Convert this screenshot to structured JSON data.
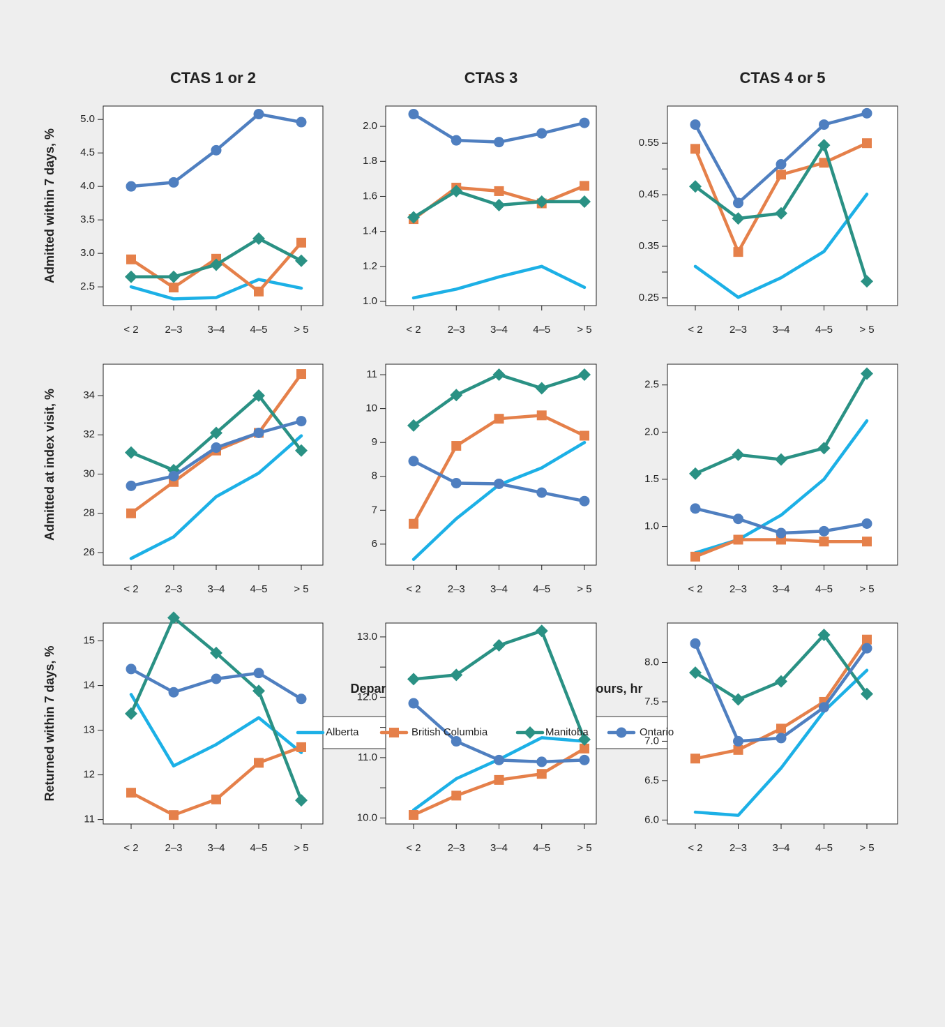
{
  "figure": {
    "column_titles": [
      "CTAS 1 or 2",
      "CTAS 3",
      "CTAS 4 or 5"
    ],
    "row_titles": [
      "Admitted within 7 days, %",
      "Admitted at index visit, %",
      "Returned within 7 days, %"
    ],
    "xlabel": "Departmental mean LOS in preceding 8 hours, hr",
    "legend": [
      {
        "name": "Alberta",
        "color": "#1cb0e6",
        "marker": "none"
      },
      {
        "name": "British Columbia",
        "color": "#e5804a",
        "marker": "square"
      },
      {
        "name": "Manitoba",
        "color": "#2a9184",
        "marker": "diamond"
      },
      {
        "name": "Ontario",
        "color": "#4f7fc0",
        "marker": "circle"
      }
    ]
  },
  "chart_data": [
    {
      "type": "line",
      "categories": [
        "< 2",
        "2–3",
        "3–4",
        "4–5",
        "> 5"
      ],
      "ylim": [
        2.22,
        5.2
      ],
      "yticks": [
        2.5,
        {
          "value": 3,
          "label": "3.0"
        },
        3.5,
        {
          "value": 4,
          "label": "4.0"
        },
        4.5,
        {
          "value": 5,
          "label": "5.0"
        }
      ],
      "series": [
        {
          "values": [
            2.5,
            2.32,
            2.34,
            2.61,
            2.48
          ]
        },
        {
          "values": [
            2.91,
            2.49,
            2.92,
            2.43,
            3.16
          ]
        },
        {
          "values": [
            2.65,
            2.65,
            2.83,
            3.22,
            2.89
          ]
        },
        {
          "values": [
            4.0,
            4.06,
            4.54,
            5.08,
            4.96
          ]
        }
      ]
    },
    {
      "type": "line",
      "categories": [
        "< 2",
        "2–3",
        "3–4",
        "4–5",
        "> 5"
      ],
      "ylim": [
        0.976,
        2.116
      ],
      "yticks": [
        {
          "value": 1,
          "label": "1.0"
        },
        1.2,
        1.4,
        1.6,
        1.8,
        {
          "value": 2,
          "label": "2.0"
        }
      ],
      "series": [
        {
          "values": [
            1.02,
            1.07,
            1.14,
            1.2,
            1.08
          ]
        },
        {
          "values": [
            1.47,
            1.65,
            1.63,
            1.56,
            1.66
          ]
        },
        {
          "values": [
            1.48,
            1.63,
            1.55,
            1.57,
            1.57
          ]
        },
        {
          "values": [
            2.07,
            1.92,
            1.91,
            1.96,
            2.02
          ]
        }
      ]
    },
    {
      "type": "line",
      "categories": [
        "< 2",
        "2–3",
        "3–4",
        "4–5",
        "> 5"
      ],
      "ylim": [
        0.235,
        0.622
      ],
      "yticks": [
        0.25,
        0.35,
        0.45,
        0.55
      ],
      "yminor": [
        0.3,
        0.4,
        0.5
      ],
      "series": [
        {
          "values": [
            0.311,
            0.251,
            0.289,
            0.34,
            0.451
          ]
        },
        {
          "values": [
            0.539,
            0.339,
            0.489,
            0.512,
            0.55
          ]
        },
        {
          "values": [
            0.466,
            0.404,
            0.414,
            0.546,
            0.282
          ]
        },
        {
          "values": [
            0.586,
            0.434,
            0.509,
            0.586,
            0.608
          ]
        }
      ]
    },
    {
      "type": "line",
      "categories": [
        "< 2",
        "2–3",
        "3–4",
        "4–5",
        "> 5"
      ],
      "ylim": [
        25.36,
        35.6
      ],
      "yticks": [
        26,
        28,
        30,
        32,
        34
      ],
      "series": [
        {
          "values": [
            25.7,
            26.8,
            28.85,
            30.05,
            31.95
          ]
        },
        {
          "values": [
            28.0,
            29.6,
            31.2,
            32.1,
            35.1
          ]
        },
        {
          "values": [
            31.1,
            30.2,
            32.1,
            34.0,
            31.2
          ]
        },
        {
          "values": [
            29.4,
            29.9,
            31.35,
            32.1,
            32.7
          ]
        }
      ]
    },
    {
      "type": "line",
      "categories": [
        "< 2",
        "2–3",
        "3–4",
        "4–5",
        "> 5"
      ],
      "ylim": [
        5.38,
        11.31
      ],
      "yticks": [
        6,
        7,
        8,
        9,
        10,
        11
      ],
      "series": [
        {
          "values": [
            5.55,
            6.75,
            7.75,
            8.25,
            9.0
          ]
        },
        {
          "values": [
            6.6,
            8.9,
            9.7,
            9.8,
            9.2
          ]
        },
        {
          "values": [
            9.5,
            10.4,
            11.0,
            10.6,
            11.0
          ]
        },
        {
          "values": [
            8.45,
            7.8,
            7.78,
            7.52,
            7.27
          ]
        }
      ]
    },
    {
      "type": "line",
      "categories": [
        "< 2",
        "2–3",
        "3–4",
        "4–5",
        "> 5"
      ],
      "ylim": [
        0.59,
        2.72
      ],
      "yticks": [
        {
          "value": 1,
          "label": "1.0"
        },
        1.5,
        {
          "value": 2,
          "label": "2.0"
        },
        2.5
      ],
      "series": [
        {
          "values": [
            0.72,
            0.86,
            1.12,
            1.5,
            2.12
          ]
        },
        {
          "values": [
            0.68,
            0.86,
            0.86,
            0.84,
            0.84
          ]
        },
        {
          "values": [
            1.56,
            1.76,
            1.71,
            1.83,
            2.62
          ]
        },
        {
          "values": [
            1.19,
            1.08,
            0.93,
            0.95,
            1.03
          ]
        }
      ]
    },
    {
      "type": "line",
      "categories": [
        "< 2",
        "2–3",
        "3–4",
        "4–5",
        "> 5"
      ],
      "ylim": [
        10.9,
        15.4
      ],
      "yticks": [
        11,
        12,
        13,
        14,
        15
      ],
      "series": [
        {
          "values": [
            13.8,
            12.2,
            12.68,
            13.28,
            12.5
          ]
        },
        {
          "values": [
            11.6,
            11.1,
            11.45,
            12.27,
            12.62
          ]
        },
        {
          "values": [
            13.37,
            15.52,
            14.73,
            13.88,
            11.43
          ]
        },
        {
          "values": [
            14.37,
            13.85,
            14.15,
            14.28,
            13.7
          ]
        }
      ]
    },
    {
      "type": "line",
      "categories": [
        "< 2",
        "2–3",
        "3–4",
        "4–5",
        "> 5"
      ],
      "ylim": [
        9.9,
        13.23
      ],
      "yticks": [
        {
          "value": 10,
          "label": "10.0"
        },
        {
          "value": 11,
          "label": "11.0"
        },
        {
          "value": 12,
          "label": "12.0"
        },
        {
          "value": 13,
          "label": "13.0"
        }
      ],
      "yminor": [
        10.5,
        11.5,
        12.5
      ],
      "series": [
        {
          "values": [
            10.13,
            10.65,
            10.97,
            11.33,
            11.27
          ]
        },
        {
          "values": [
            10.05,
            10.37,
            10.63,
            10.73,
            11.15
          ]
        },
        {
          "values": [
            12.3,
            12.37,
            12.86,
            13.1,
            11.3
          ]
        },
        {
          "values": [
            11.9,
            11.27,
            10.96,
            10.93,
            10.96
          ]
        }
      ]
    },
    {
      "type": "line",
      "categories": [
        "< 2",
        "2–3",
        "3–4",
        "4–5",
        "> 5"
      ],
      "ylim": [
        5.95,
        8.5
      ],
      "yticks": [
        {
          "value": 6,
          "label": "6.0"
        },
        6.5,
        {
          "value": 7,
          "label": "7.0"
        },
        7.5,
        {
          "value": 8,
          "label": "8.0"
        }
      ],
      "series": [
        {
          "values": [
            6.1,
            6.06,
            6.66,
            7.38,
            7.9
          ]
        },
        {
          "values": [
            6.78,
            6.89,
            7.16,
            7.5,
            8.29
          ]
        },
        {
          "values": [
            7.87,
            7.53,
            7.76,
            8.35,
            7.6
          ]
        },
        {
          "values": [
            8.24,
            7.0,
            7.04,
            7.43,
            8.18
          ]
        }
      ]
    }
  ]
}
